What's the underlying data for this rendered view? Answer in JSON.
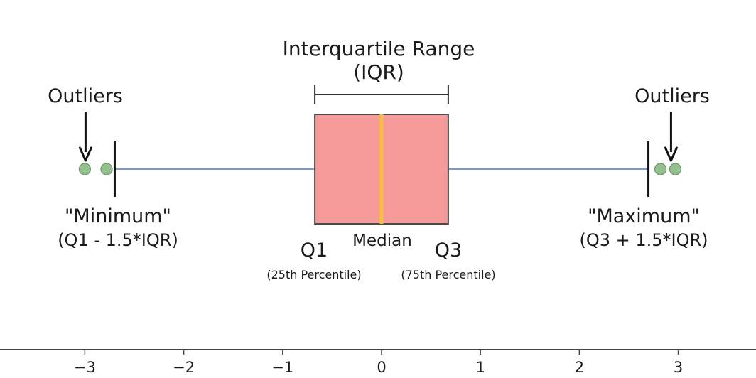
{
  "title_line1": "Interquartile Range",
  "title_line2": "(IQR)",
  "outliers_left_label": "Outliers",
  "outliers_right_label": "Outliers",
  "minimum_label": "\"Minimum\"",
  "minimum_formula": "(Q1 - 1.5*IQR)",
  "maximum_label": "\"Maximum\"",
  "maximum_formula": "(Q3 + 1.5*IQR)",
  "q1_label": "Q1",
  "q1_sub": "(25th Percentile)",
  "median_label": "Median",
  "q3_label": "Q3",
  "q3_sub": "(75th Percentile)",
  "colors": {
    "box_fill": "#f79a9a",
    "box_stroke": "#4a4a4a",
    "median": "#f5c23c",
    "whisker": "#7f96c8",
    "outlier_fill": "#94c08e",
    "outlier_stroke": "#6a9a66",
    "axis": "#444444"
  },
  "chart_data": {
    "type": "box",
    "q1": -0.6745,
    "median": 0,
    "q3": 0.6745,
    "whisker_low": -2.698,
    "whisker_high": 2.698,
    "outliers": [
      -3.0,
      -2.78,
      2.82,
      2.97
    ],
    "xlim": [
      -3.9,
      3.8
    ],
    "xticks": [
      -3,
      -2,
      -1,
      0,
      1,
      2,
      3
    ],
    "xtick_labels": [
      "−3",
      "−2",
      "−1",
      "0",
      "1",
      "2",
      "3"
    ]
  }
}
